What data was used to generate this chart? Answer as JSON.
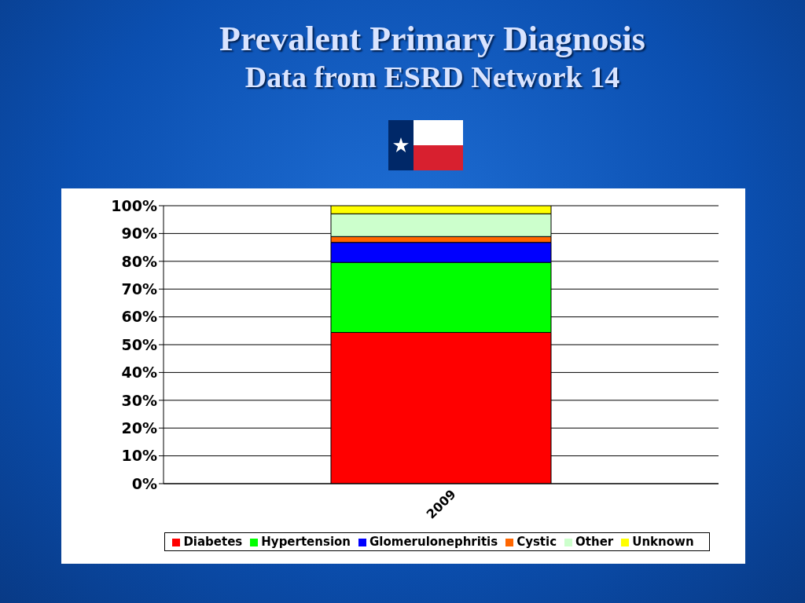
{
  "chart_data": {
    "type": "bar",
    "title": "Prevalent Primary Diagnosis",
    "subtitle": "Data from ESRD Network 14",
    "categories": [
      "2009"
    ],
    "stacked": true,
    "series": [
      {
        "name": "Diabetes",
        "color": "#ff0000",
        "values": [
          54.4
        ]
      },
      {
        "name": "Hypertension",
        "color": "#00ff00",
        "values": [
          25.2
        ]
      },
      {
        "name": "Glomerulonephritis",
        "color": "#0000ff",
        "values": [
          7.2
        ]
      },
      {
        "name": "Cystic",
        "color": "#ff6600",
        "values": [
          2.1
        ]
      },
      {
        "name": "Other",
        "color": "#ccffcc",
        "values": [
          8.2
        ]
      },
      {
        "name": "Unknown",
        "color": "#ffff00",
        "values": [
          2.9
        ]
      }
    ],
    "ylim": [
      0,
      100
    ],
    "yticks": [
      {
        "value": 0,
        "label": "0%"
      },
      {
        "value": 10,
        "label": "10%"
      },
      {
        "value": 20,
        "label": "20%"
      },
      {
        "value": 30,
        "label": "30%"
      },
      {
        "value": 40,
        "label": "40%"
      },
      {
        "value": 50,
        "label": "50%"
      },
      {
        "value": 60,
        "label": "60%"
      },
      {
        "value": 70,
        "label": "70%"
      },
      {
        "value": 80,
        "label": "80%"
      },
      {
        "value": 90,
        "label": "90%"
      },
      {
        "value": 100,
        "label": "100%"
      }
    ],
    "grid": "y",
    "legend": "bottom"
  }
}
